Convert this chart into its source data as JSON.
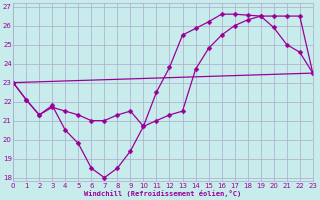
{
  "xlabel": "Windchill (Refroidissement éolien,°C)",
  "bg_color": "#c8ecec",
  "line_color": "#990099",
  "grid_color": "#aaaacc",
  "xlim": [
    0,
    23
  ],
  "ylim": [
    17.8,
    27.2
  ],
  "yticks": [
    18,
    19,
    20,
    21,
    22,
    23,
    24,
    25,
    26,
    27
  ],
  "xticks": [
    0,
    1,
    2,
    3,
    4,
    5,
    6,
    7,
    8,
    9,
    10,
    11,
    12,
    13,
    14,
    15,
    16,
    17,
    18,
    19,
    20,
    21,
    22,
    23
  ],
  "line1_x": [
    0,
    1,
    2,
    3,
    4,
    5,
    6,
    7,
    8,
    9,
    10,
    11,
    12,
    13,
    14,
    15,
    16,
    17,
    18,
    19,
    20,
    21,
    22,
    23
  ],
  "line1_y": [
    23.0,
    22.1,
    21.3,
    21.8,
    20.5,
    19.8,
    18.5,
    18.0,
    18.5,
    19.4,
    20.7,
    22.5,
    23.8,
    25.5,
    25.85,
    26.2,
    26.6,
    26.6,
    26.55,
    26.5,
    25.9,
    25.0,
    24.6,
    23.5
  ],
  "line2_x": [
    0,
    1,
    2,
    3,
    4,
    5,
    6,
    7,
    8,
    9,
    10,
    11,
    12,
    13,
    14,
    15,
    16,
    17,
    18,
    19,
    20,
    21,
    22,
    23
  ],
  "line2_y": [
    23.0,
    22.1,
    21.3,
    21.7,
    21.5,
    21.3,
    21.0,
    21.0,
    21.3,
    21.5,
    20.7,
    21.0,
    21.3,
    21.5,
    23.7,
    24.8,
    25.5,
    26.0,
    26.3,
    26.5,
    26.5,
    26.5,
    26.5,
    23.5
  ],
  "line3_x": [
    0,
    23
  ],
  "line3_y": [
    23.0,
    23.5
  ],
  "markersize": 2.5,
  "linewidth": 0.9
}
